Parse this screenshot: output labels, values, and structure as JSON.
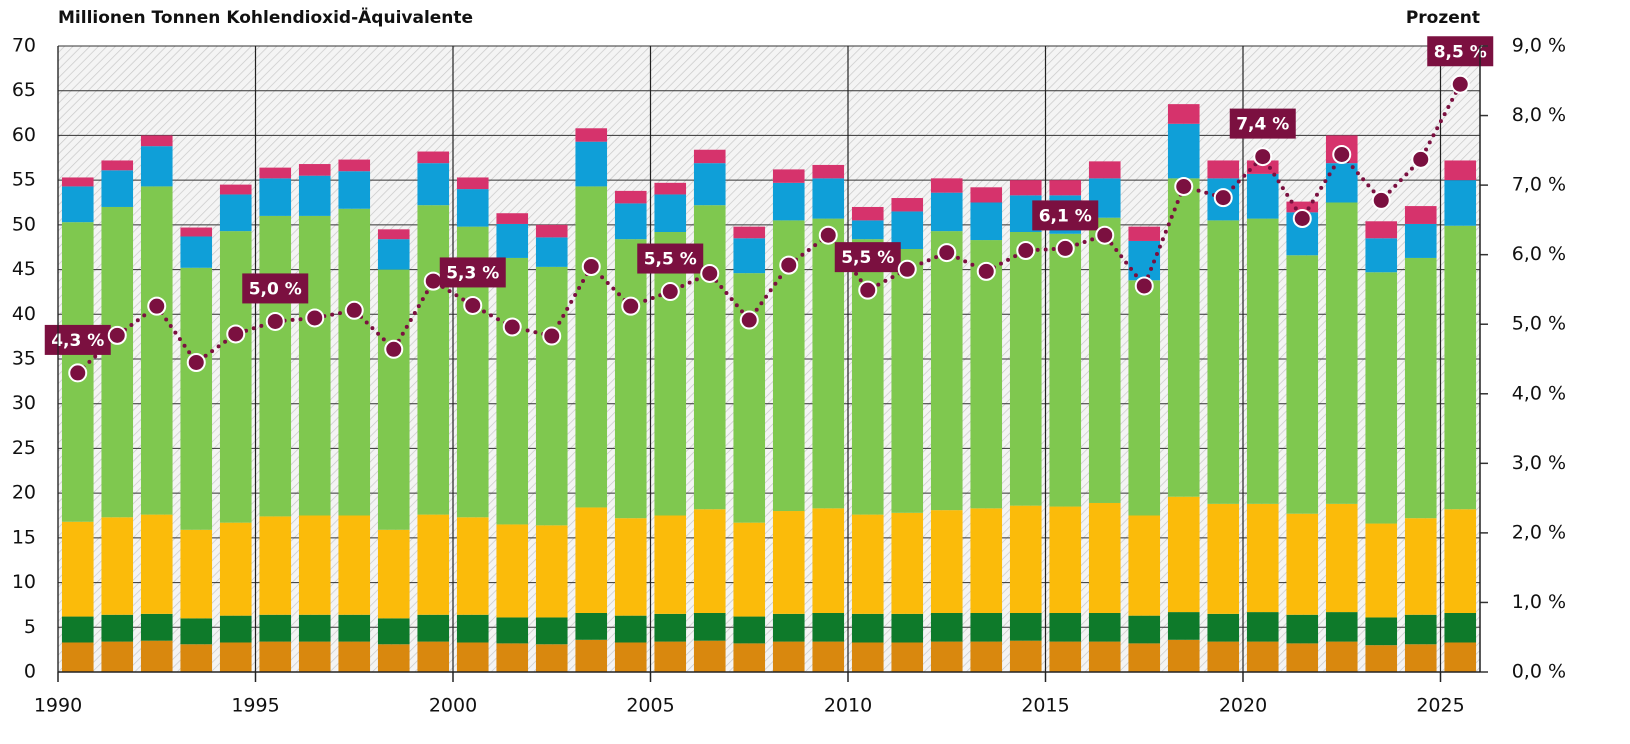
{
  "chart_data": {
    "type": "bar",
    "title": "Millionen Tonnen Kohlendioxid-Äquivalente",
    "y2_title": "Prozent",
    "x": [
      1990,
      1991,
      1992,
      1993,
      1994,
      1995,
      1996,
      1997,
      1998,
      1999,
      2000,
      2001,
      2002,
      2003,
      2004,
      2005,
      2006,
      2007,
      2008,
      2009,
      2010,
      2011,
      2012,
      2013,
      2014,
      2015,
      2016,
      2017,
      2018,
      2019,
      2020,
      2021,
      2022,
      2023,
      2024,
      2025
    ],
    "xlim": [
      1990,
      2026
    ],
    "xticks": [
      1990,
      1995,
      2000,
      2005,
      2010,
      2015,
      2020,
      2025
    ],
    "ylim": [
      0,
      70
    ],
    "yticks": [
      0,
      5,
      10,
      15,
      20,
      25,
      30,
      35,
      40,
      45,
      50,
      55,
      60,
      65,
      70
    ],
    "y2lim": [
      0,
      9
    ],
    "y2ticks": [
      {
        "value": 0,
        "label": "0,0 %"
      },
      {
        "value": 1,
        "label": "1,0 %"
      },
      {
        "value": 2,
        "label": "2,0 %"
      },
      {
        "value": 3,
        "label": "3,0 %"
      },
      {
        "value": 4,
        "label": "4,0 %"
      },
      {
        "value": 5,
        "label": "5,0 %"
      },
      {
        "value": 6,
        "label": "6,0 %"
      },
      {
        "value": 7,
        "label": "7,0 %"
      },
      {
        "value": 8,
        "label": "8,0 %"
      },
      {
        "value": 9,
        "label": "9,0 %"
      }
    ],
    "grid": true,
    "series": [
      {
        "color": "#d9880e",
        "values": [
          3.3,
          3.4,
          3.5,
          3.1,
          3.3,
          3.4,
          3.4,
          3.4,
          3.1,
          3.4,
          3.3,
          3.2,
          3.1,
          3.6,
          3.3,
          3.4,
          3.5,
          3.2,
          3.4,
          3.4,
          3.3,
          3.3,
          3.4,
          3.4,
          3.5,
          3.4,
          3.4,
          3.2,
          3.6,
          3.4,
          3.4,
          3.2,
          3.4,
          3.0,
          3.1,
          3.3
        ]
      },
      {
        "color": "#0e7a2a",
        "values": [
          2.9,
          3.0,
          3.0,
          2.9,
          3.0,
          3.0,
          3.0,
          3.0,
          2.9,
          3.0,
          3.1,
          2.9,
          3.0,
          3.0,
          3.0,
          3.1,
          3.1,
          3.0,
          3.1,
          3.2,
          3.2,
          3.2,
          3.2,
          3.2,
          3.1,
          3.2,
          3.2,
          3.1,
          3.1,
          3.1,
          3.3,
          3.2,
          3.3,
          3.1,
          3.3,
          3.3
        ]
      },
      {
        "color": "#fbbb0a",
        "values": [
          10.6,
          10.9,
          11.1,
          9.9,
          10.4,
          11.0,
          11.1,
          11.1,
          9.9,
          11.2,
          10.9,
          10.4,
          10.3,
          11.8,
          10.9,
          11.0,
          11.6,
          10.5,
          11.5,
          11.7,
          11.1,
          11.3,
          11.5,
          11.7,
          12.0,
          11.9,
          12.3,
          11.2,
          12.9,
          12.3,
          12.1,
          11.3,
          12.1,
          10.5,
          10.8,
          11.6
        ]
      },
      {
        "color": "#7fc84f",
        "values": [
          33.5,
          34.7,
          36.7,
          29.3,
          32.6,
          33.6,
          33.5,
          34.3,
          29.1,
          34.6,
          32.5,
          29.8,
          28.9,
          35.9,
          31.2,
          31.7,
          34.0,
          27.9,
          32.5,
          32.4,
          30.8,
          29.5,
          31.2,
          30.0,
          30.6,
          30.5,
          31.9,
          26.3,
          35.6,
          31.7,
          31.9,
          28.9,
          33.7,
          28.1,
          29.1,
          31.7
        ]
      },
      {
        "color": "#0f9fd8",
        "values": [
          4.0,
          4.1,
          4.5,
          3.5,
          4.1,
          4.2,
          4.5,
          4.2,
          3.4,
          4.7,
          4.2,
          3.8,
          3.3,
          5.0,
          4.0,
          4.2,
          4.7,
          3.9,
          4.2,
          4.5,
          2.1,
          4.2,
          4.3,
          4.2,
          4.1,
          4.3,
          4.4,
          4.4,
          6.1,
          4.7,
          5.0,
          4.8,
          4.4,
          3.8,
          3.8,
          5.1
        ]
      },
      {
        "color": "#d6336c",
        "values": [
          1.0,
          1.1,
          1.2,
          1.0,
          1.1,
          1.2,
          1.3,
          1.3,
          1.1,
          1.3,
          1.3,
          1.2,
          1.4,
          1.5,
          1.4,
          1.3,
          1.5,
          1.3,
          1.5,
          1.5,
          1.5,
          1.5,
          1.6,
          1.7,
          1.7,
          1.7,
          1.9,
          1.6,
          2.2,
          2.0,
          1.5,
          1.2,
          3.1,
          1.9,
          2.0,
          2.2
        ]
      },
      {
        "type": "line",
        "axis": "y2",
        "color": "#7b1040",
        "values": [
          4.3,
          4.84,
          5.26,
          4.45,
          4.86,
          5.04,
          5.09,
          5.2,
          4.64,
          5.62,
          5.27,
          4.96,
          4.83,
          5.83,
          5.26,
          5.47,
          5.73,
          5.06,
          5.85,
          6.28,
          5.49,
          5.79,
          6.03,
          5.76,
          6.06,
          6.09,
          6.28,
          5.55,
          6.98,
          6.82,
          7.41,
          6.52,
          7.44,
          6.78,
          7.37,
          8.45
        ],
        "value_labels": [
          "4,3 %",
          null,
          null,
          null,
          null,
          "5,0 %",
          null,
          null,
          null,
          null,
          "5,3 %",
          null,
          null,
          null,
          null,
          "5,5 %",
          null,
          null,
          null,
          null,
          "5,5 %",
          null,
          null,
          null,
          null,
          "6,1 %",
          null,
          null,
          null,
          null,
          "7,4 %",
          null,
          null,
          null,
          null,
          "8,5 %"
        ]
      }
    ]
  }
}
